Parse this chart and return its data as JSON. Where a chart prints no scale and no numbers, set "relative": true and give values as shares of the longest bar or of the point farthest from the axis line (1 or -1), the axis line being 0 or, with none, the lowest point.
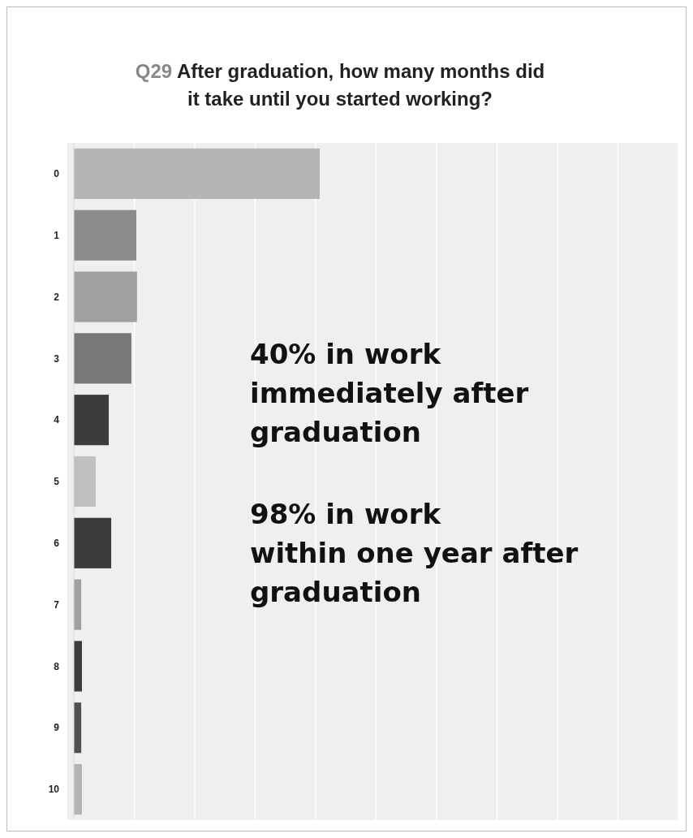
{
  "chart_data": {
    "type": "bar",
    "orientation": "horizontal",
    "relative": true,
    "grid": "x",
    "title": "Q29 After graduation, how many months did it take until you started working?",
    "categories": [
      "0",
      "1",
      "2",
      "3",
      "4",
      "5",
      "6",
      "7",
      "8",
      "9",
      "10"
    ],
    "values": [
      1,
      0.254,
      0.257,
      0.234,
      0.142,
      0.089,
      0.152,
      0.03,
      0.033,
      0.03,
      0.033
    ],
    "colors": [
      "#b4b4b4",
      "#8c8c8c",
      "#a0a0a0",
      "#787878",
      "#3c3c3c",
      "#c0c0c0",
      "#3c3c3c",
      "#a0a0a0",
      "#3c3c3c",
      "#505050",
      "#b4b4b4"
    ],
    "annotations": [
      "40% in work\nimmediately after\ngraduation",
      "98% in work\nwithin one year after\ngraduation"
    ]
  }
}
